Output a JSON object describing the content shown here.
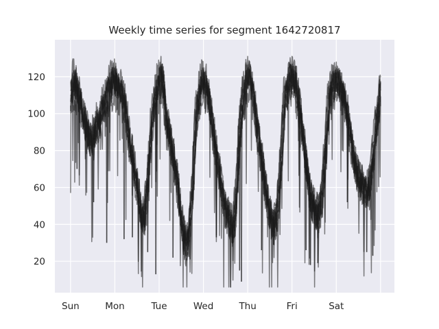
{
  "chart_data": {
    "type": "line",
    "title": "Weekly time series for segment 1642720817",
    "xlabel": "",
    "ylabel": "",
    "x_unit": "hours since start of week",
    "x_ticks": [
      {
        "label": "Sun",
        "value": 0
      },
      {
        "label": "Mon",
        "value": 24
      },
      {
        "label": "Tue",
        "value": 48
      },
      {
        "label": "Wed",
        "value": 72
      },
      {
        "label": "Thu",
        "value": 96
      },
      {
        "label": "Fri",
        "value": 120
      },
      {
        "label": "Sat",
        "value": 144
      }
    ],
    "extra_gridline_x": 168,
    "xlim": [
      -8.5,
      175.5
    ],
    "ylim": [
      3,
      140
    ],
    "y_ticks": [
      20,
      40,
      60,
      80,
      100,
      120
    ],
    "grid": true,
    "line_color": "#1a1a1a",
    "line_alpha": 0.55,
    "background": "#eaeaf2",
    "envelope": [
      [
        0,
        108
      ],
      [
        2,
        116
      ],
      [
        4,
        112
      ],
      [
        6,
        102
      ],
      [
        8,
        95
      ],
      [
        10,
        87
      ],
      [
        12,
        85
      ],
      [
        14,
        92
      ],
      [
        16,
        97
      ],
      [
        18,
        103
      ],
      [
        20,
        108
      ],
      [
        22,
        114
      ],
      [
        24,
        116
      ],
      [
        26,
        112
      ],
      [
        28,
        110
      ],
      [
        30,
        102
      ],
      [
        32,
        84
      ],
      [
        34,
        76
      ],
      [
        36,
        62
      ],
      [
        38,
        50
      ],
      [
        40,
        44
      ],
      [
        42,
        64
      ],
      [
        44,
        94
      ],
      [
        46,
        108
      ],
      [
        48,
        115
      ],
      [
        50,
        118
      ],
      [
        52,
        96
      ],
      [
        54,
        86
      ],
      [
        56,
        76
      ],
      [
        58,
        63
      ],
      [
        60,
        45
      ],
      [
        62,
        33
      ],
      [
        64,
        34
      ],
      [
        66,
        58
      ],
      [
        68,
        96
      ],
      [
        70,
        110
      ],
      [
        72,
        116
      ],
      [
        74,
        114
      ],
      [
        76,
        100
      ],
      [
        78,
        86
      ],
      [
        80,
        73
      ],
      [
        82,
        60
      ],
      [
        84,
        50
      ],
      [
        86,
        44
      ],
      [
        88,
        40
      ],
      [
        90,
        55
      ],
      [
        92,
        96
      ],
      [
        94,
        110
      ],
      [
        96,
        118
      ],
      [
        98,
        116
      ],
      [
        100,
        102
      ],
      [
        102,
        86
      ],
      [
        104,
        73
      ],
      [
        106,
        58
      ],
      [
        108,
        48
      ],
      [
        110,
        41
      ],
      [
        112,
        44
      ],
      [
        114,
        72
      ],
      [
        116,
        106
      ],
      [
        118,
        114
      ],
      [
        120,
        118
      ],
      [
        122,
        115
      ],
      [
        124,
        103
      ],
      [
        126,
        87
      ],
      [
        128,
        72
      ],
      [
        130,
        57
      ],
      [
        132,
        50
      ],
      [
        134,
        46
      ],
      [
        136,
        53
      ],
      [
        138,
        78
      ],
      [
        140,
        106
      ],
      [
        142,
        114
      ],
      [
        144,
        116
      ],
      [
        146,
        114
      ],
      [
        148,
        108
      ],
      [
        150,
        100
      ],
      [
        152,
        86
      ],
      [
        154,
        74
      ],
      [
        156,
        66
      ],
      [
        158,
        62
      ],
      [
        160,
        60
      ],
      [
        162,
        60
      ],
      [
        164,
        76
      ],
      [
        166,
        96
      ],
      [
        168,
        110
      ]
    ],
    "dips": [
      {
        "x": 3.5,
        "y": 70
      },
      {
        "x": 12.5,
        "y": 52
      },
      {
        "x": 19.6,
        "y": 30
      },
      {
        "x": 29,
        "y": 32
      },
      {
        "x": 33.5,
        "y": 33
      },
      {
        "x": 41.8,
        "y": 25
      },
      {
        "x": 46.2,
        "y": 13
      },
      {
        "x": 55.5,
        "y": 22
      },
      {
        "x": 64.8,
        "y": 21
      },
      {
        "x": 79,
        "y": 33
      },
      {
        "x": 91.6,
        "y": 15
      },
      {
        "x": 92.6,
        "y": 9
      },
      {
        "x": 103.5,
        "y": 26
      },
      {
        "x": 110,
        "y": 29
      },
      {
        "x": 127.6,
        "y": 26
      },
      {
        "x": 130,
        "y": 18
      },
      {
        "x": 134,
        "y": 19
      },
      {
        "x": 150,
        "y": 52
      },
      {
        "x": 160.5,
        "y": 25
      },
      {
        "x": 163.8,
        "y": 23
      }
    ]
  }
}
